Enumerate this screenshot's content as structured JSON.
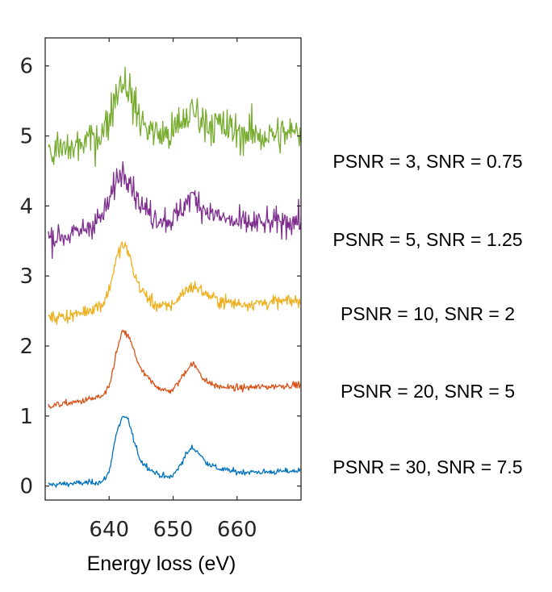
{
  "chart_data": {
    "type": "line",
    "title": "",
    "xlabel": "Energy loss (eV)",
    "ylabel": "",
    "xlim": [
      630,
      670
    ],
    "ylim": [
      -0.2,
      6.4
    ],
    "xticks": [
      640,
      650,
      660
    ],
    "yticks": [
      0,
      1,
      2,
      3,
      4,
      5,
      6
    ],
    "grid": false,
    "legend": "none",
    "peaks_ev": [
      642.2,
      653.0
    ],
    "series": [
      {
        "color": "#0072BD",
        "offset": 0,
        "annotation": "PSNR = 30, SNR = 7.5",
        "noise": 0.035,
        "points": [
          [
            631,
            0.02
          ],
          [
            635,
            0.04
          ],
          [
            639,
            0.06
          ],
          [
            640,
            0.2
          ],
          [
            641,
            0.7
          ],
          [
            642,
            0.98
          ],
          [
            643,
            0.95
          ],
          [
            644,
            0.6
          ],
          [
            645,
            0.35
          ],
          [
            647,
            0.2
          ],
          [
            649,
            0.12
          ],
          [
            650,
            0.15
          ],
          [
            651,
            0.28
          ],
          [
            652,
            0.45
          ],
          [
            653,
            0.55
          ],
          [
            654,
            0.48
          ],
          [
            655,
            0.35
          ],
          [
            657,
            0.25
          ],
          [
            660,
            0.2
          ],
          [
            665,
            0.2
          ],
          [
            670,
            0.22
          ]
        ]
      },
      {
        "color": "#D95319",
        "offset": 1.2,
        "annotation": "PSNR = 20, SNR = 5",
        "noise": 0.04,
        "points": [
          [
            631,
            1.15
          ],
          [
            635,
            1.2
          ],
          [
            639,
            1.28
          ],
          [
            640,
            1.4
          ],
          [
            641,
            1.85
          ],
          [
            642,
            2.2
          ],
          [
            643,
            2.15
          ],
          [
            644,
            1.9
          ],
          [
            645,
            1.65
          ],
          [
            647,
            1.45
          ],
          [
            649,
            1.35
          ],
          [
            650,
            1.38
          ],
          [
            651,
            1.5
          ],
          [
            652,
            1.65
          ],
          [
            653,
            1.75
          ],
          [
            654,
            1.65
          ],
          [
            655,
            1.5
          ],
          [
            657,
            1.42
          ],
          [
            660,
            1.4
          ],
          [
            665,
            1.42
          ],
          [
            670,
            1.45
          ]
        ]
      },
      {
        "color": "#EDB120",
        "offset": 2.4,
        "annotation": "PSNR = 10, SNR = 2",
        "noise": 0.08,
        "points": [
          [
            631,
            2.4
          ],
          [
            635,
            2.45
          ],
          [
            639,
            2.6
          ],
          [
            640,
            2.8
          ],
          [
            641,
            3.2
          ],
          [
            642,
            3.45
          ],
          [
            643,
            3.35
          ],
          [
            644,
            3.0
          ],
          [
            645,
            2.8
          ],
          [
            647,
            2.6
          ],
          [
            649,
            2.55
          ],
          [
            650,
            2.6
          ],
          [
            651,
            2.7
          ],
          [
            652,
            2.8
          ],
          [
            653,
            2.85
          ],
          [
            654,
            2.82
          ],
          [
            655,
            2.75
          ],
          [
            657,
            2.65
          ],
          [
            660,
            2.6
          ],
          [
            665,
            2.62
          ],
          [
            670,
            2.65
          ]
        ]
      },
      {
        "color": "#7E2F8E",
        "offset": 3.6,
        "annotation": "PSNR = 5, SNR = 1.25",
        "noise": 0.16,
        "points": [
          [
            631,
            3.55
          ],
          [
            635,
            3.6
          ],
          [
            639,
            3.85
          ],
          [
            640,
            4.05
          ],
          [
            641,
            4.35
          ],
          [
            642,
            4.5
          ],
          [
            643,
            4.45
          ],
          [
            644,
            4.2
          ],
          [
            645,
            4.0
          ],
          [
            647,
            3.85
          ],
          [
            649,
            3.8
          ],
          [
            650,
            3.82
          ],
          [
            651,
            3.9
          ],
          [
            652,
            4.05
          ],
          [
            653,
            4.15
          ],
          [
            654,
            4.05
          ],
          [
            655,
            3.95
          ],
          [
            657,
            3.85
          ],
          [
            660,
            3.75
          ],
          [
            665,
            3.75
          ],
          [
            670,
            3.8
          ]
        ]
      },
      {
        "color": "#77AC30",
        "offset": 4.8,
        "annotation": "PSNR = 3, SNR = 0.75",
        "noise": 0.24,
        "points": [
          [
            631,
            4.75
          ],
          [
            635,
            4.85
          ],
          [
            639,
            5.05
          ],
          [
            640,
            5.25
          ],
          [
            641,
            5.6
          ],
          [
            642,
            5.8
          ],
          [
            643,
            5.7
          ],
          [
            644,
            5.4
          ],
          [
            645,
            5.2
          ],
          [
            647,
            5.05
          ],
          [
            649,
            5.0
          ],
          [
            650,
            5.05
          ],
          [
            651,
            5.15
          ],
          [
            652,
            5.25
          ],
          [
            653,
            5.35
          ],
          [
            654,
            5.3
          ],
          [
            655,
            5.2
          ],
          [
            657,
            5.15
          ],
          [
            660,
            5.05
          ],
          [
            665,
            5.0
          ],
          [
            670,
            5.05
          ]
        ]
      }
    ]
  }
}
